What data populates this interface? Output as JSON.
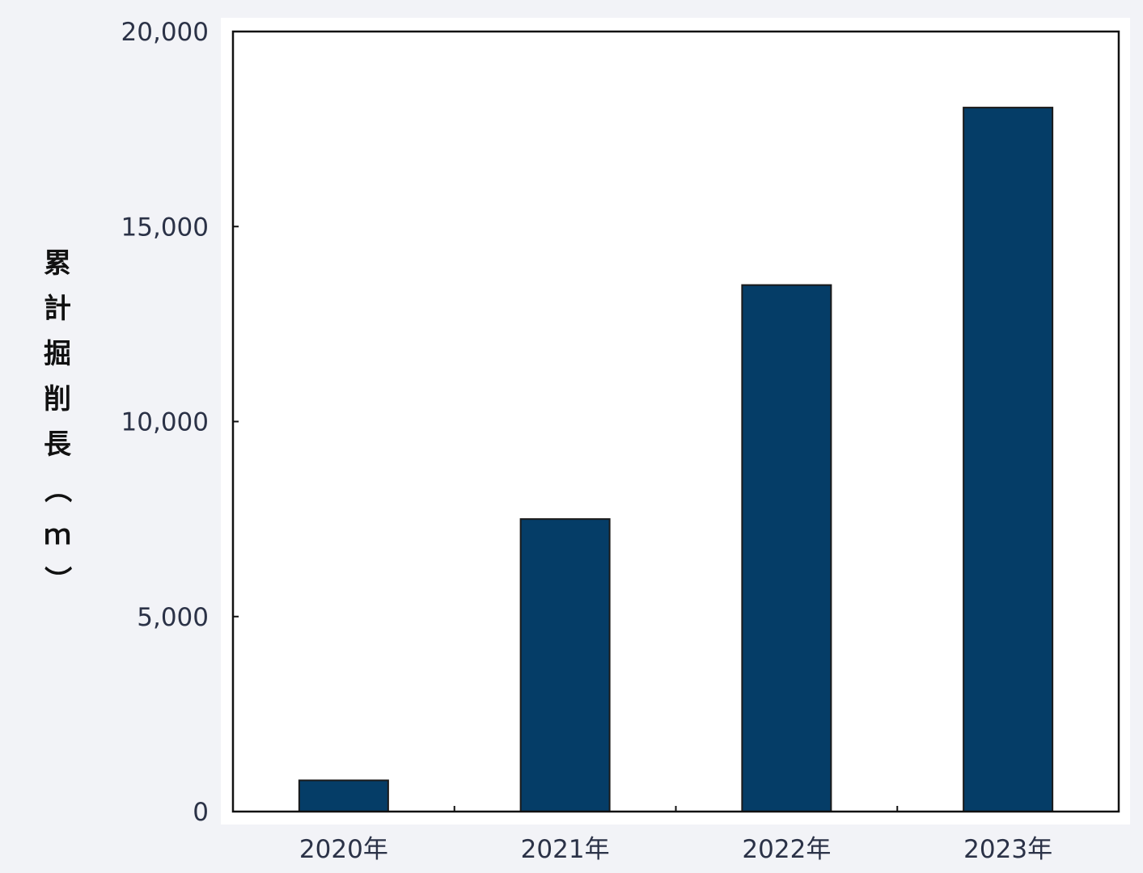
{
  "chart_data": {
    "type": "bar",
    "title": "",
    "xlabel": "",
    "ylabel": "累計掘削長（ｍ）",
    "categories": [
      "2020年",
      "2021年",
      "2022年",
      "2023年"
    ],
    "values": [
      800,
      7500,
      13500,
      18050
    ],
    "ylim": [
      0,
      20000
    ],
    "yticks": [
      0,
      5000,
      10000,
      15000,
      20000
    ],
    "ytick_labels": [
      "0",
      "5,000",
      "10,000",
      "15,000",
      "20,000"
    ],
    "grid": false,
    "legend": "none",
    "colors": {
      "bar": "#053d67",
      "bar_edge": "#1a1a1a",
      "axes": "#111111",
      "plot_bg": "#ffffff",
      "page_bg": "#f2f3f7",
      "tick_text": "#2b3247"
    }
  }
}
